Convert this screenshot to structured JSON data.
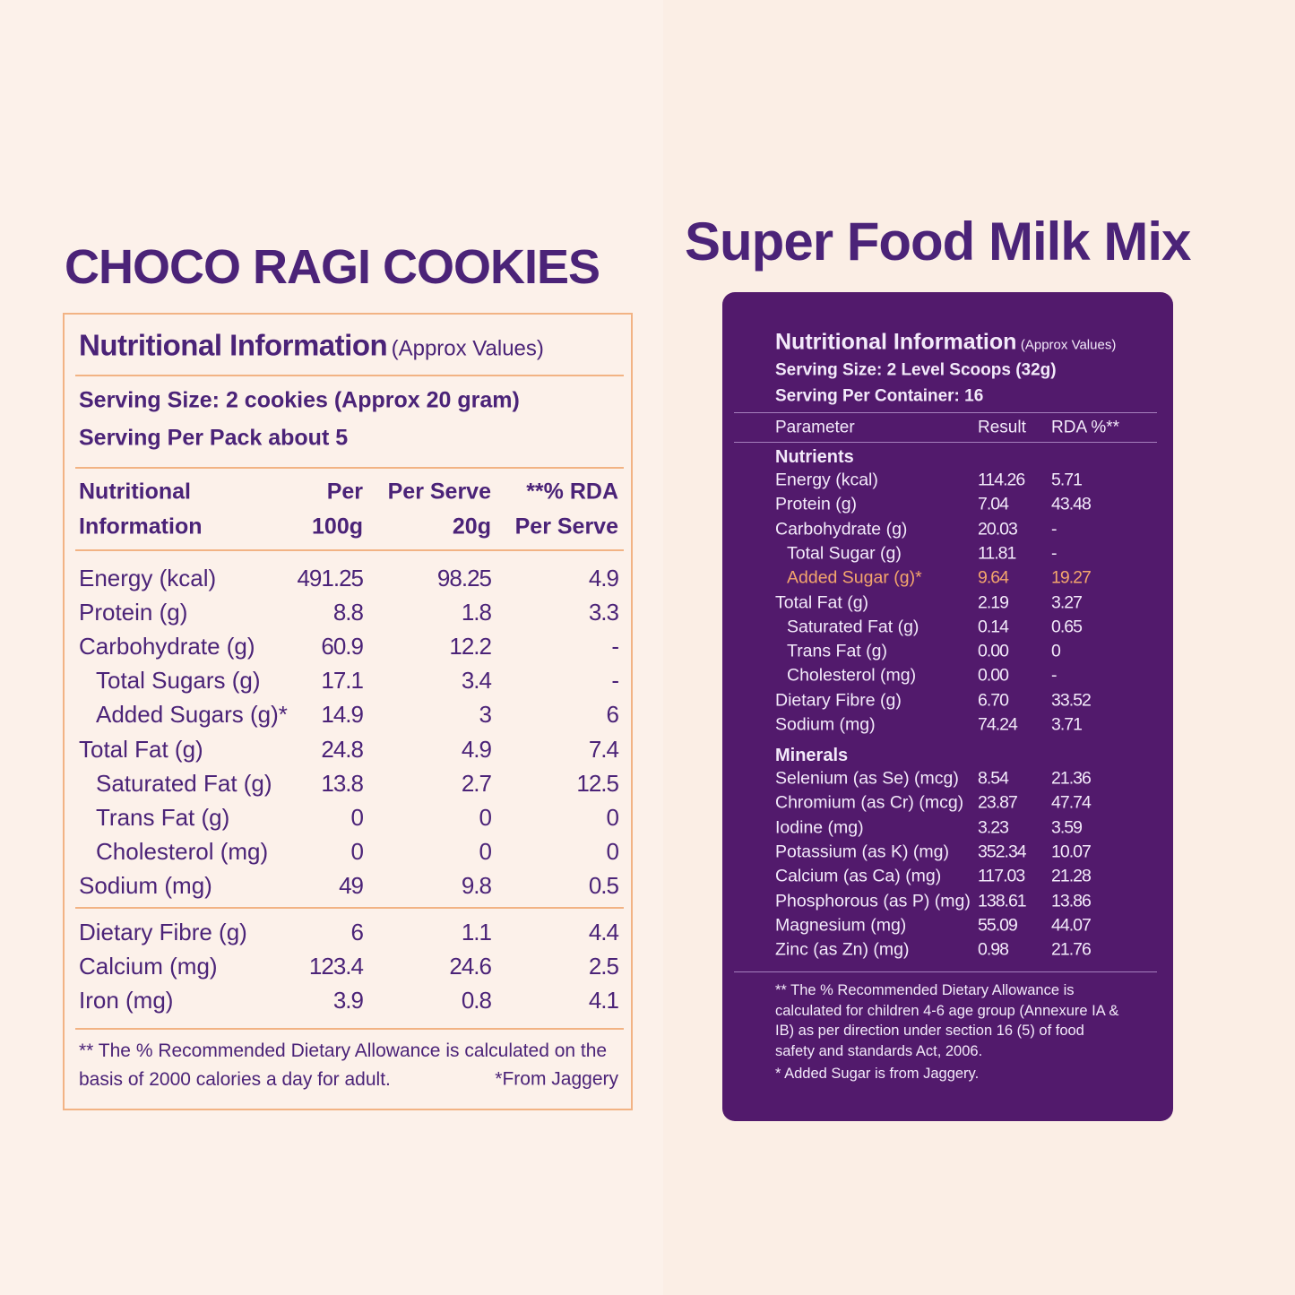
{
  "left": {
    "title": "CHOCO RAGI COOKIES",
    "heading": "Nutritional Information",
    "heading_note": "(Approx Values)",
    "serving_size": "Serving Size: 2 cookies (Approx 20 gram)",
    "serving_per_pack": "Serving Per Pack about 5",
    "columns": [
      [
        "Nutritional",
        "Information"
      ],
      [
        "Per",
        "100g"
      ],
      [
        "Per Serve",
        "20g"
      ],
      [
        "**% RDA",
        "Per Serve"
      ]
    ],
    "groups": [
      [
        {
          "label": "Energy (kcal)",
          "values": [
            "491.25",
            "98.25",
            "4.9"
          ]
        },
        {
          "label": "Protein (g)",
          "values": [
            "8.8",
            "1.8",
            "3.3"
          ]
        },
        {
          "label": "Carbohydrate (g)",
          "values": [
            "60.9",
            "12.2",
            "-"
          ],
          "sub": [
            {
              "label": "Total Sugars (g)",
              "values": [
                "17.1",
                "3.4",
                "-"
              ]
            },
            {
              "label": "Added  Sugars (g)*",
              "values": [
                "14.9",
                "3",
                "6"
              ]
            }
          ]
        },
        {
          "label": "Total Fat (g)",
          "values": [
            "24.8",
            "4.9",
            "7.4"
          ],
          "sub": [
            {
              "label": "Saturated Fat (g)",
              "values": [
                "13.8",
                "2.7",
                "12.5"
              ]
            },
            {
              "label": "Trans Fat (g)",
              "values": [
                "0",
                "0",
                "0"
              ]
            },
            {
              "label": "Cholesterol (mg)",
              "values": [
                "0",
                "0",
                "0"
              ]
            }
          ]
        },
        {
          "label": "Sodium (mg)",
          "values": [
            "49",
            "9.8",
            "0.5"
          ]
        }
      ],
      [
        {
          "label": "Dietary Fibre (g)",
          "values": [
            "6",
            "1.1",
            "4.4"
          ]
        },
        {
          "label": "Calcium (mg)",
          "values": [
            "123.4",
            "24.6",
            "2.5"
          ]
        },
        {
          "label": "Iron (mg)",
          "values": [
            "3.9",
            "0.8",
            "4.1"
          ]
        }
      ]
    ],
    "footnote_rda": "** The % Recommended Dietary Allowance is calculated on the basis of 2000 calories a day for adult.",
    "footnote_sugar": "*From Jaggery"
  },
  "right": {
    "title": "Super Food Milk Mix",
    "heading": "Nutritional Information",
    "heading_note": "(Approx Values)",
    "serving_size": "Serving Size: 2 Level Scoops (32g)",
    "serving_per_container": "Serving Per Container: 16",
    "columns": [
      "Parameter",
      "Result",
      "RDA %**"
    ],
    "sections": [
      {
        "name": "Nutrients",
        "rows": [
          {
            "label": "Energy (kcal)",
            "values": [
              "114.26",
              "5.71"
            ]
          },
          {
            "label": "Protein (g)",
            "values": [
              "7.04",
              "43.48"
            ]
          },
          {
            "label": "Carbohydrate (g)",
            "values": [
              "20.03",
              "-"
            ],
            "sub": [
              {
                "label": "Total Sugar (g)",
                "values": [
                  "11.81",
                  "-"
                ]
              },
              {
                "label": "Added Sugar (g)*",
                "values": [
                  "9.64",
                  "19.27"
                ],
                "color": "#f4a66c"
              }
            ]
          },
          {
            "label": "Total Fat (g)",
            "values": [
              "2.19",
              "3.27"
            ],
            "sub": [
              {
                "label": "Saturated Fat (g)",
                "values": [
                  "0.14",
                  "0.65"
                ]
              },
              {
                "label": "Trans Fat (g)",
                "values": [
                  "0.00",
                  "0"
                ]
              },
              {
                "label": "Cholesterol (mg)",
                "values": [
                  "0.00",
                  "-"
                ]
              }
            ]
          },
          {
            "label": "Dietary Fibre (g)",
            "values": [
              "6.70",
              "33.52"
            ]
          },
          {
            "label": "Sodium (mg)",
            "values": [
              "74.24",
              "3.71"
            ]
          }
        ]
      },
      {
        "name": "Minerals",
        "rows": [
          {
            "label": "Selenium (as Se)  (mcg)",
            "values": [
              "8.54",
              "21.36"
            ]
          },
          {
            "label": "Chromium (as Cr)  (mcg)",
            "values": [
              "23.87",
              "47.74"
            ]
          },
          {
            "label": "Iodine (mg)",
            "values": [
              "3.23",
              "3.59"
            ]
          },
          {
            "label": "Potassium (as K) (mg)",
            "values": [
              "352.34",
              "10.07"
            ]
          },
          {
            "label": "Calcium (as Ca) (mg)",
            "values": [
              "117.03",
              "21.28"
            ]
          },
          {
            "label": "Phosphorous (as P) (mg)",
            "values": [
              "138.61",
              "13.86"
            ]
          },
          {
            "label": "Magnesium (mg)",
            "values": [
              "55.09",
              "44.07"
            ]
          },
          {
            "label": "Zinc (as Zn) (mg)",
            "values": [
              "0.98",
              "21.76"
            ]
          }
        ]
      }
    ],
    "footnote_rda": "** The % Recommended Dietary Allowance is calculated for children 4-6 age group (Annexure IA & IB) as per direction under section 16 (5) of food safety and standards Act, 2006.",
    "footnote_sugar": "*  Added Sugar is from Jaggery."
  }
}
